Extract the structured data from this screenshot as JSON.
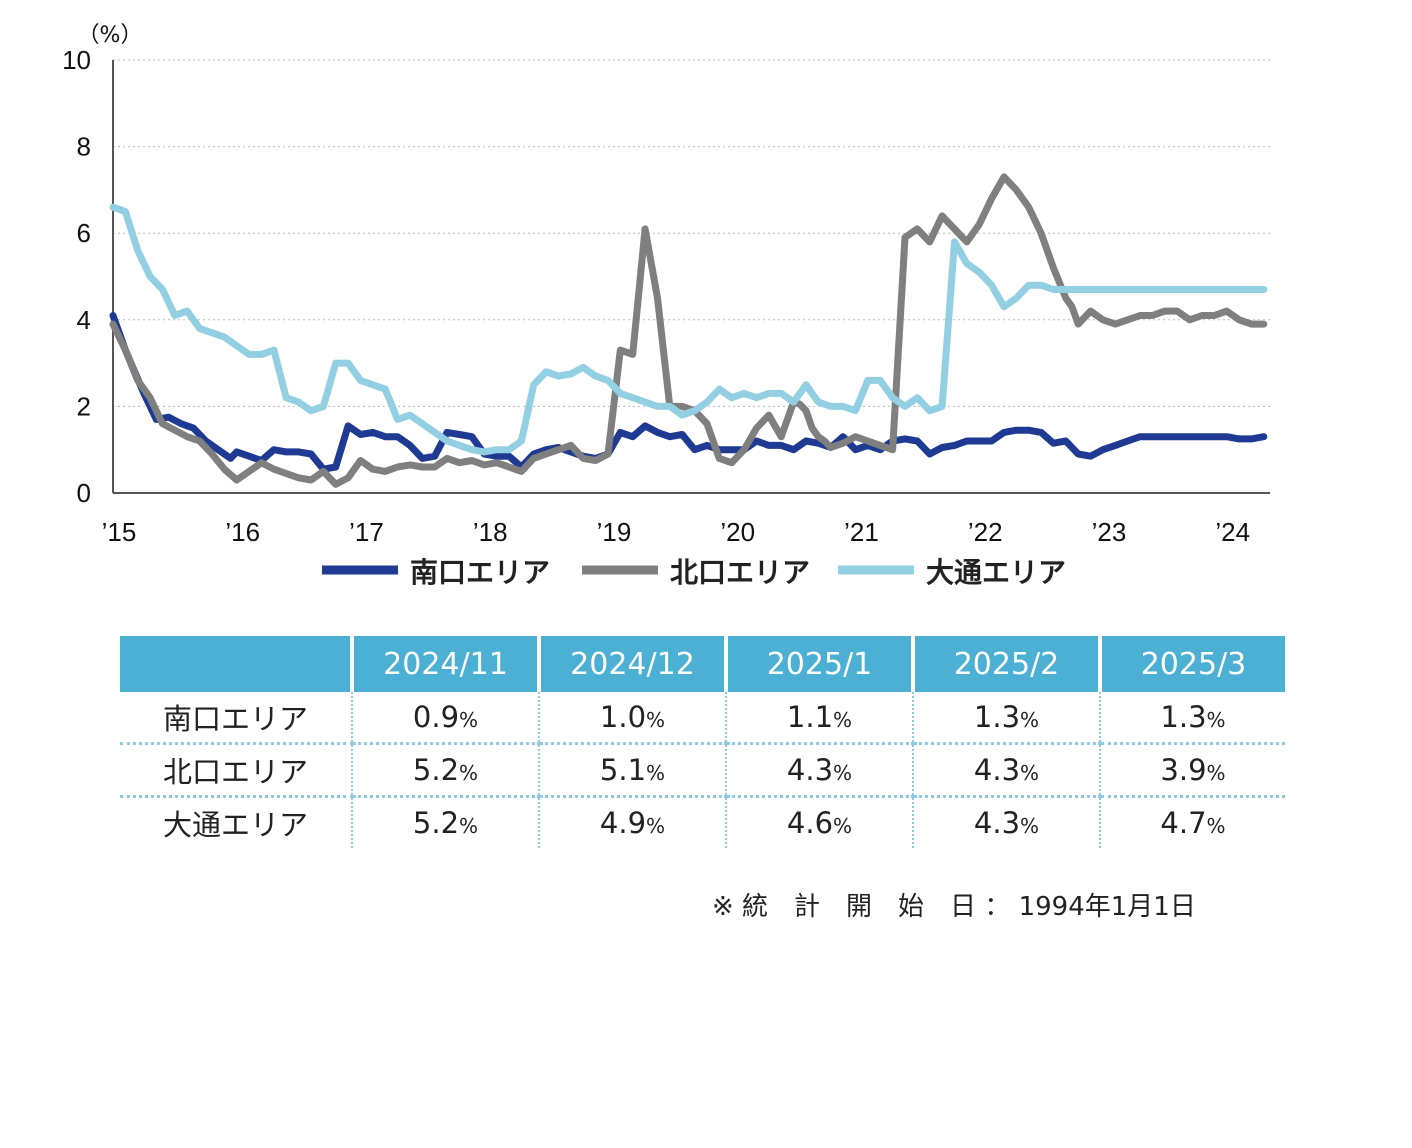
{
  "chart_data": {
    "type": "line",
    "unit_label": "（%）",
    "ylim": [
      0,
      10
    ],
    "y_ticks": [
      0,
      2,
      4,
      6,
      8,
      10
    ],
    "x_tick_labels": [
      "’15",
      "’16",
      "’17",
      "’18",
      "’19",
      "’20",
      "’21",
      "’22",
      "’23",
      "’24"
    ],
    "xlim": [
      2015,
      2024.35
    ],
    "grid": true,
    "legend_position": "bottom",
    "colors": {
      "south": "#1f3a93",
      "north": "#7f7f7f",
      "odori": "#92cfe3",
      "grid": "#bbbbbb",
      "axis": "#555555"
    },
    "series": [
      {
        "name": "南口エリア",
        "color": "#1f3a93",
        "x": [
          2015.0,
          2015.1,
          2015.25,
          2015.35,
          2015.45,
          2015.55,
          2015.65,
          2015.75,
          2015.85,
          2015.95,
          2016.0,
          2016.1,
          2016.2,
          2016.3,
          2016.4,
          2016.5,
          2016.6,
          2016.7,
          2016.8,
          2016.9,
          2017.0,
          2017.1,
          2017.2,
          2017.3,
          2017.35,
          2017.4,
          2017.5,
          2017.6,
          2017.7,
          2017.8,
          2017.9,
          2018.0,
          2018.1,
          2018.2,
          2018.3,
          2018.4,
          2018.5,
          2018.6,
          2018.7,
          2018.8,
          2018.9,
          2019.0,
          2019.1,
          2019.2,
          2019.3,
          2019.4,
          2019.5,
          2019.6,
          2019.7,
          2019.8,
          2019.9,
          2020.0,
          2020.1,
          2020.2,
          2020.3,
          2020.4,
          2020.5,
          2020.6,
          2020.7,
          2020.8,
          2020.9,
          2021.0,
          2021.1,
          2021.2,
          2021.3,
          2021.4,
          2021.5,
          2021.6,
          2021.7,
          2021.8,
          2021.9,
          2022.0,
          2022.1,
          2022.2,
          2022.3,
          2022.4,
          2022.5,
          2022.6,
          2022.7,
          2022.8,
          2022.9,
          2023.0,
          2023.1,
          2023.2,
          2023.3,
          2023.4,
          2023.5,
          2023.6,
          2023.7,
          2023.8,
          2023.9,
          2024.0,
          2024.1,
          2024.2,
          2024.3
        ],
        "y": [
          4.1,
          3.3,
          2.3,
          1.7,
          1.75,
          1.6,
          1.5,
          1.2,
          1.0,
          0.8,
          0.95,
          0.85,
          0.75,
          1.0,
          0.95,
          0.95,
          0.9,
          0.55,
          0.6,
          1.55,
          1.35,
          1.4,
          1.3,
          1.3,
          1.2,
          1.1,
          0.8,
          0.85,
          1.4,
          1.35,
          1.3,
          0.9,
          0.85,
          0.85,
          0.6,
          0.9,
          1.0,
          1.05,
          0.95,
          0.85,
          0.8,
          0.9,
          1.4,
          1.3,
          1.55,
          1.4,
          1.3,
          1.35,
          1.0,
          1.1,
          1.0,
          1.0,
          1.0,
          1.2,
          1.1,
          1.1,
          1.0,
          1.2,
          1.15,
          1.05,
          1.3,
          1.0,
          1.1,
          1.0,
          1.2,
          1.25,
          1.2,
          0.9,
          1.05,
          1.1,
          1.2,
          1.2,
          1.2,
          1.4,
          1.45,
          1.45,
          1.4,
          1.15,
          1.2,
          0.9,
          0.85,
          1.0,
          1.1,
          1.2,
          1.3,
          1.3,
          1.3,
          1.3,
          1.3,
          1.3,
          1.3,
          1.3,
          1.25,
          1.25,
          1.3
        ]
      },
      {
        "name": "北口エリア",
        "color": "#7f7f7f",
        "x": [
          2015.0,
          2015.1,
          2015.2,
          2015.3,
          2015.4,
          2015.5,
          2015.6,
          2015.7,
          2015.8,
          2015.9,
          2016.0,
          2016.1,
          2016.2,
          2016.3,
          2016.4,
          2016.5,
          2016.6,
          2016.7,
          2016.8,
          2016.9,
          2017.0,
          2017.1,
          2017.2,
          2017.3,
          2017.4,
          2017.5,
          2017.6,
          2017.7,
          2017.8,
          2017.9,
          2018.0,
          2018.1,
          2018.2,
          2018.3,
          2018.4,
          2018.5,
          2018.6,
          2018.7,
          2018.8,
          2018.9,
          2019.0,
          2019.1,
          2019.2,
          2019.3,
          2019.4,
          2019.5,
          2019.6,
          2019.7,
          2019.8,
          2019.9,
          2020.0,
          2020.1,
          2020.2,
          2020.3,
          2020.4,
          2020.5,
          2020.55,
          2020.6,
          2020.65,
          2020.7,
          2020.75,
          2020.8,
          2020.9,
          2021.0,
          2021.1,
          2021.2,
          2021.3,
          2021.4,
          2021.5,
          2021.6,
          2021.7,
          2021.8,
          2021.9,
          2022.0,
          2022.1,
          2022.2,
          2022.3,
          2022.4,
          2022.5,
          2022.6,
          2022.7,
          2022.75,
          2022.8,
          2022.9,
          2023.0,
          2023.1,
          2023.2,
          2023.3,
          2023.4,
          2023.5,
          2023.6,
          2023.7,
          2023.8,
          2023.9,
          2024.0,
          2024.1,
          2024.2,
          2024.3
        ],
        "y": [
          3.9,
          3.3,
          2.6,
          2.2,
          1.6,
          1.45,
          1.3,
          1.2,
          0.9,
          0.55,
          0.3,
          0.5,
          0.7,
          0.55,
          0.45,
          0.35,
          0.3,
          0.5,
          0.2,
          0.35,
          0.75,
          0.55,
          0.5,
          0.6,
          0.65,
          0.6,
          0.6,
          0.8,
          0.7,
          0.75,
          0.65,
          0.7,
          0.6,
          0.5,
          0.8,
          0.9,
          1.0,
          1.1,
          0.8,
          0.75,
          0.9,
          3.3,
          3.2,
          6.1,
          4.5,
          2.0,
          2.0,
          1.9,
          1.6,
          0.8,
          0.7,
          1.0,
          1.5,
          1.8,
          1.3,
          2.1,
          2.05,
          1.9,
          1.5,
          1.3,
          1.2,
          1.05,
          1.15,
          1.3,
          1.2,
          1.1,
          1.0,
          5.9,
          6.1,
          5.8,
          6.4,
          6.1,
          5.8,
          6.2,
          6.8,
          7.3,
          7.0,
          6.6,
          6.0,
          5.2,
          4.5,
          4.3,
          3.9,
          4.2,
          4.0,
          3.9,
          4.0,
          4.1,
          4.1,
          4.2,
          4.2,
          4.0,
          4.1,
          4.1,
          4.2,
          4.0,
          3.9,
          3.9
        ]
      },
      {
        "name": "大通エリア",
        "color": "#92cfe3",
        "x": [
          2015.0,
          2015.1,
          2015.2,
          2015.3,
          2015.4,
          2015.5,
          2015.6,
          2015.7,
          2015.8,
          2015.9,
          2016.0,
          2016.1,
          2016.2,
          2016.3,
          2016.4,
          2016.5,
          2016.6,
          2016.7,
          2016.8,
          2016.9,
          2017.0,
          2017.1,
          2017.2,
          2017.3,
          2017.4,
          2017.5,
          2017.6,
          2017.7,
          2017.8,
          2017.9,
          2018.0,
          2018.1,
          2018.2,
          2018.3,
          2018.4,
          2018.5,
          2018.6,
          2018.7,
          2018.8,
          2018.9,
          2019.0,
          2019.1,
          2019.2,
          2019.3,
          2019.4,
          2019.5,
          2019.6,
          2019.7,
          2019.8,
          2019.9,
          2020.0,
          2020.1,
          2020.2,
          2020.3,
          2020.4,
          2020.5,
          2020.6,
          2020.7,
          2020.8,
          2020.9,
          2021.0,
          2021.1,
          2021.2,
          2021.3,
          2021.4,
          2021.5,
          2021.6,
          2021.7,
          2021.8,
          2021.9,
          2022.0,
          2022.1,
          2022.2,
          2022.3,
          2022.4,
          2022.5,
          2022.6,
          2022.7,
          2022.8,
          2022.9,
          2023.0,
          2023.1,
          2023.2,
          2023.3,
          2023.4,
          2023.5,
          2023.6,
          2023.7,
          2023.8,
          2023.9,
          2024.0,
          2024.1,
          2024.2,
          2024.3
        ],
        "y": [
          6.6,
          6.5,
          5.6,
          5.0,
          4.7,
          4.1,
          4.2,
          3.8,
          3.7,
          3.6,
          3.4,
          3.2,
          3.2,
          3.3,
          2.2,
          2.1,
          1.9,
          2.0,
          3.0,
          3.0,
          2.6,
          2.5,
          2.4,
          1.7,
          1.8,
          1.6,
          1.4,
          1.2,
          1.1,
          1.0,
          0.95,
          1.0,
          1.0,
          1.2,
          2.5,
          2.8,
          2.7,
          2.75,
          2.9,
          2.7,
          2.6,
          2.3,
          2.2,
          2.1,
          2.0,
          2.0,
          1.8,
          1.9,
          2.1,
          2.4,
          2.2,
          2.3,
          2.2,
          2.3,
          2.3,
          2.1,
          2.5,
          2.1,
          2.0,
          2.0,
          1.9,
          2.6,
          2.6,
          2.2,
          2.0,
          2.2,
          1.9,
          2.0,
          5.8,
          5.3,
          5.1,
          4.8,
          4.3,
          4.5,
          4.8,
          4.8,
          4.7,
          4.7,
          4.7,
          4.7,
          4.7,
          4.7,
          4.7,
          4.7,
          4.7,
          4.7,
          4.7,
          4.7,
          4.7,
          4.7,
          4.7,
          4.7,
          4.7,
          4.7
        ]
      }
    ]
  },
  "table": {
    "headers": [
      "",
      "2024/11",
      "2024/12",
      "2025/1",
      "2025/2",
      "2025/3"
    ],
    "rows": [
      {
        "label": "南口エリア",
        "values": [
          "0.9",
          "1.0",
          "1.1",
          "1.3",
          "1.3"
        ]
      },
      {
        "label": "北口エリア",
        "values": [
          "5.2",
          "5.1",
          "4.3",
          "4.3",
          "3.9"
        ]
      },
      {
        "label": "大通エリア",
        "values": [
          "5.2",
          "4.9",
          "4.6",
          "4.3",
          "4.7"
        ]
      }
    ],
    "unit": "%"
  },
  "footnote": "※ 統　計　開　始　日 ： 1994年1月1日"
}
